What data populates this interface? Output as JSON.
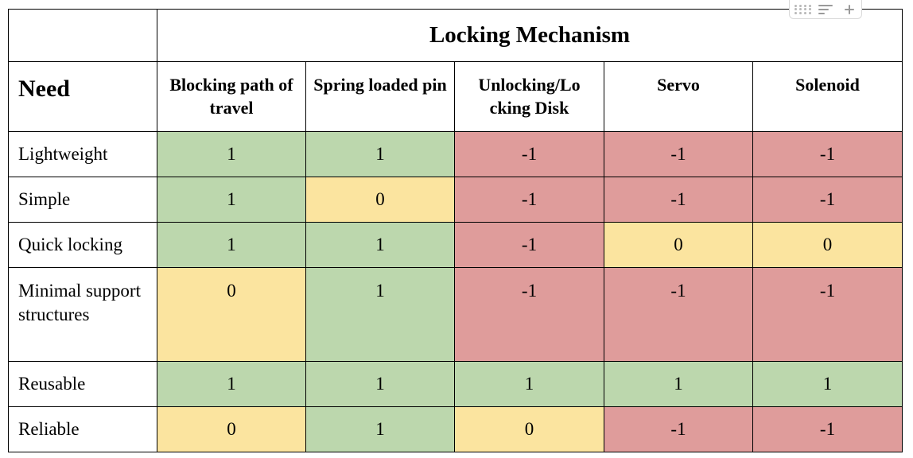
{
  "table": {
    "group_header": "Locking Mechanism",
    "need_header": "Need",
    "columns": [
      "Blocking path of travel",
      "Spring loaded pin",
      "Unlocking/Lo cking Disk",
      "Servo",
      "Solenoid"
    ],
    "rows": [
      {
        "need": "Lightweight",
        "scores": [
          "1",
          "1",
          "-1",
          "-1",
          "-1"
        ]
      },
      {
        "need": "Simple",
        "scores": [
          "1",
          "0",
          "-1",
          "-1",
          "-1"
        ]
      },
      {
        "need": "Quick locking",
        "scores": [
          "1",
          "1",
          "-1",
          "0",
          "0"
        ]
      },
      {
        "need": "Minimal support structures",
        "scores": [
          "0",
          "1",
          "-1",
          "-1",
          "-1"
        ]
      },
      {
        "need": "Reusable",
        "scores": [
          "1",
          "1",
          "1",
          "1",
          "1"
        ]
      },
      {
        "need": "Reliable",
        "scores": [
          "0",
          "1",
          "0",
          "-1",
          "-1"
        ]
      }
    ]
  },
  "colors": {
    "positive": "#bcd7ad",
    "neutral": "#fbe49f",
    "negative": "#df9c9b"
  },
  "toolbar": {
    "icons": [
      "drag-handle-icon",
      "filter-icon",
      "add-icon"
    ]
  }
}
